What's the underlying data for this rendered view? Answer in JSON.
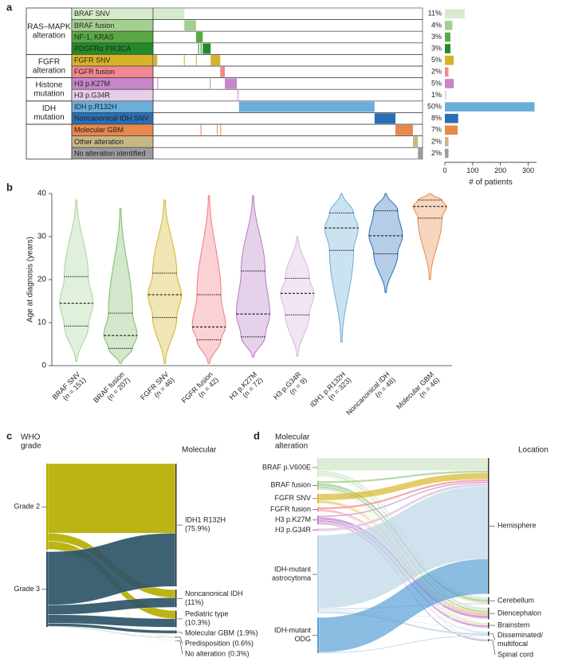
{
  "chart_data": [
    {
      "type": "oncoprint",
      "panel": "a",
      "segment_xlim": [
        0,
        646
      ],
      "xlim": [
        0,
        330
      ],
      "xticks": [
        0,
        100,
        200,
        300
      ],
      "xlabel": "# of patients",
      "groups": [
        {
          "label": [
            "RAS–MAPK",
            "alteration"
          ],
          "rows": [
            {
              "name": "BRAF SNV",
              "color": "#d6ebcc",
              "segments": [
                [
                  2,
                  75
                ]
              ],
              "value": 72,
              "percent_label": "11%"
            },
            {
              "name": "BRAF fusion",
              "color": "#a3cf8f",
              "segments": [
                [
                  75,
                  103
                ]
              ],
              "value": 27,
              "percent_label": "4%"
            },
            {
              "name": "NF-1, KRAS",
              "color": "#5aa845",
              "segments": [
                [
                  103,
                  119
                ]
              ],
              "value": 20,
              "percent_label": "3%"
            },
            {
              "name": "PDGFRα PIK3CA",
              "color": "#24892b",
              "segments": [
                [
                  108,
                  110
                ],
                [
                  114,
                  116
                ],
                [
                  119,
                  138
                ]
              ],
              "value": 20,
              "percent_label": "3%"
            }
          ]
        },
        {
          "label": [
            "FGFR",
            "alteration"
          ],
          "rows": [
            {
              "name": "FGFR SNV",
              "color": "#d5b42a",
              "segments": [
                [
                  2,
                  10
                ],
                [
                  74,
                  76
                ],
                [
                  103,
                  105
                ],
                [
                  138,
                  161
                ]
              ],
              "value": 32,
              "percent_label": "5%"
            },
            {
              "name": "FGFR fusion",
              "color": "#f28890",
              "segments": [
                [
                  161,
                  172
                ]
              ],
              "value": 13,
              "percent_label": "2%"
            }
          ]
        },
        {
          "label": [
            "Histone",
            "mutation"
          ],
          "rows": [
            {
              "name": "H3 p.K27M",
              "color": "#c487c8",
              "segments": [
                [
                  10,
                  12
                ],
                [
                  136,
                  138
                ],
                [
                  172,
                  201
                ]
              ],
              "value": 32,
              "percent_label": "5%"
            },
            {
              "name": "H3 p.G34R",
              "color": "#e6cde6",
              "segments": [
                [
                  201,
                  206
                ]
              ],
              "value": 5,
              "percent_label": "1%"
            }
          ]
        },
        {
          "label": [
            "IDH",
            "mutation"
          ],
          "rows": [
            {
              "name": "IDH p.R132H",
              "color": "#6aaed8",
              "segments": [
                [
                  206,
                  531
                ]
              ],
              "value": 323,
              "percent_label": "50%"
            },
            {
              "name": "Noncanonical IDH SNV",
              "color": "#2a6fb6",
              "segments": [
                [
                  531,
                  581
                ]
              ],
              "value": 48,
              "percent_label": "8%"
            }
          ]
        },
        {
          "label": null,
          "rows": [
            {
              "name": "Molecular GBM",
              "color": "#e8884a",
              "segments": [
                [
                  114,
                  116
                ],
                [
                  153,
                  155
                ],
                [
                  161,
                  163
                ],
                [
                  581,
                  623
                ]
              ],
              "value": 46,
              "percent_label": "7%"
            },
            {
              "name": "Other alteration",
              "color": "#c8b685",
              "segments": [
                [
                  623,
                  635
                ]
              ],
              "value": 13,
              "percent_label": "2%"
            },
            {
              "name": "No alteration identified",
              "color": "#9c9c9c",
              "segments": [
                [
                  635,
                  646
                ]
              ],
              "value": 13,
              "percent_label": "2%"
            }
          ]
        }
      ]
    },
    {
      "type": "violin",
      "panel": "b",
      "ylabel": "Age at diagnosis (years)",
      "ylim": [
        0,
        40
      ],
      "yticks": [
        0,
        10,
        20,
        30,
        40
      ],
      "categories": [
        "BRAF SNV",
        "BRAF fusion",
        "FGFR SNV",
        "FGFR fusion",
        "H3 p.K27M",
        "H3 p.G34R",
        "IDH1 p.R132H",
        "Noncanonical IDH",
        "Molecular GBM"
      ],
      "n_labels": [
        "(n = 151)",
        "(n = 207)",
        "(n = 46)",
        "(n = 42)",
        "(n = 72)",
        "(n = 9)",
        "(n = 323)",
        "(n = 48)",
        "(n = 46)"
      ],
      "colors": [
        "#a8d49a",
        "#7dbb6a",
        "#d4b52a",
        "#f07b84",
        "#b57bbf",
        "#d7b5dc",
        "#6aaed6",
        "#2a70b8",
        "#e8894a"
      ],
      "min": [
        1,
        0.5,
        0.5,
        0.5,
        2,
        2.2,
        5.5,
        17,
        20
      ],
      "q1": [
        9.2,
        4,
        11.2,
        6,
        6.7,
        11.8,
        26.8,
        26,
        34.3
      ],
      "median": [
        14.5,
        7,
        16.5,
        9,
        12,
        16.8,
        32,
        30.2,
        37
      ],
      "q3": [
        20.7,
        12.2,
        21.5,
        16.5,
        22,
        20.3,
        35.5,
        36,
        38.5
      ],
      "max": [
        38.5,
        36.5,
        38.5,
        39.5,
        39.5,
        30,
        40,
        40,
        40
      ]
    },
    {
      "type": "sankey",
      "panel": "c",
      "left_title": [
        "WHO",
        "grade"
      ],
      "right_title": "Molecular",
      "left_nodes": [
        {
          "name": "Grade 2",
          "color": "#b5ae00",
          "values": [
            43,
            5,
            5,
            0,
            0.3,
            0.2
          ]
        },
        {
          "name": "Grade 3",
          "color": "#2e5468",
          "values": [
            33,
            6,
            5.3,
            1.9,
            0.3,
            0.1
          ]
        }
      ],
      "right_nodes": [
        {
          "name": "IDH1 R132H",
          "value": 75.9,
          "value_label": "(75.9%)"
        },
        {
          "name": "Noncanonical IDH",
          "value": 11,
          "value_label": "(11%)"
        },
        {
          "name": "Pediatric type",
          "value": 10.3,
          "value_label": "(10.3%)"
        },
        {
          "name": "Molecular GBM",
          "value": 1.9,
          "value_label": "(1.9%)"
        },
        {
          "name": "Predisposition",
          "value": 0.6,
          "value_label": "(0.6%)"
        },
        {
          "name": "No alteration",
          "value": 0.3,
          "value_label": "(0.3%)"
        }
      ]
    },
    {
      "type": "sankey",
      "panel": "d",
      "left_title": [
        "Molecular",
        "alteration"
      ],
      "right_title": "Location",
      "left_nodes": [
        {
          "name": "BRAF p.V600E",
          "color": "#cfe6c4",
          "values": [
            17,
            3,
            4,
            1,
            1,
            0
          ]
        },
        {
          "name": "BRAF fusion",
          "color": "#9ccb88",
          "values": [
            3,
            4,
            3,
            1,
            0,
            1
          ]
        },
        {
          "name": "FGFR SNV",
          "color": "#d8b72c",
          "values": [
            9,
            1,
            2,
            1,
            0,
            0
          ]
        },
        {
          "name": "FGFR fusion",
          "color": "#f28890",
          "values": [
            3,
            0,
            2,
            1,
            0,
            0
          ]
        },
        {
          "name": "H3 p.K27M",
          "color": "#bf80c4",
          "values": [
            2,
            0,
            4,
            3,
            1,
            2
          ]
        },
        {
          "name": "H3 p.G34R",
          "color": "#dcbfe0",
          "values": [
            4,
            0,
            0,
            0,
            0,
            0
          ]
        },
        {
          "name": [
            "IDH-mutant",
            "astrocytoma"
          ],
          "color": "#bcd6e6",
          "values": [
            100,
            2,
            1,
            1,
            3,
            0
          ]
        },
        {
          "name": [
            "IDH-mutant",
            "ODG"
          ],
          "color": "#5a9fd6",
          "values": [
            48,
            0,
            0,
            0,
            1,
            0
          ]
        }
      ],
      "right_nodes": [
        {
          "name": "Hemisphere"
        },
        {
          "name": "Cerebellum"
        },
        {
          "name": "Diencephalon"
        },
        {
          "name": "Brainstem"
        },
        {
          "name": [
            "Disseminated/",
            "multifocal"
          ]
        },
        {
          "name": "Spinal cord"
        }
      ]
    }
  ]
}
